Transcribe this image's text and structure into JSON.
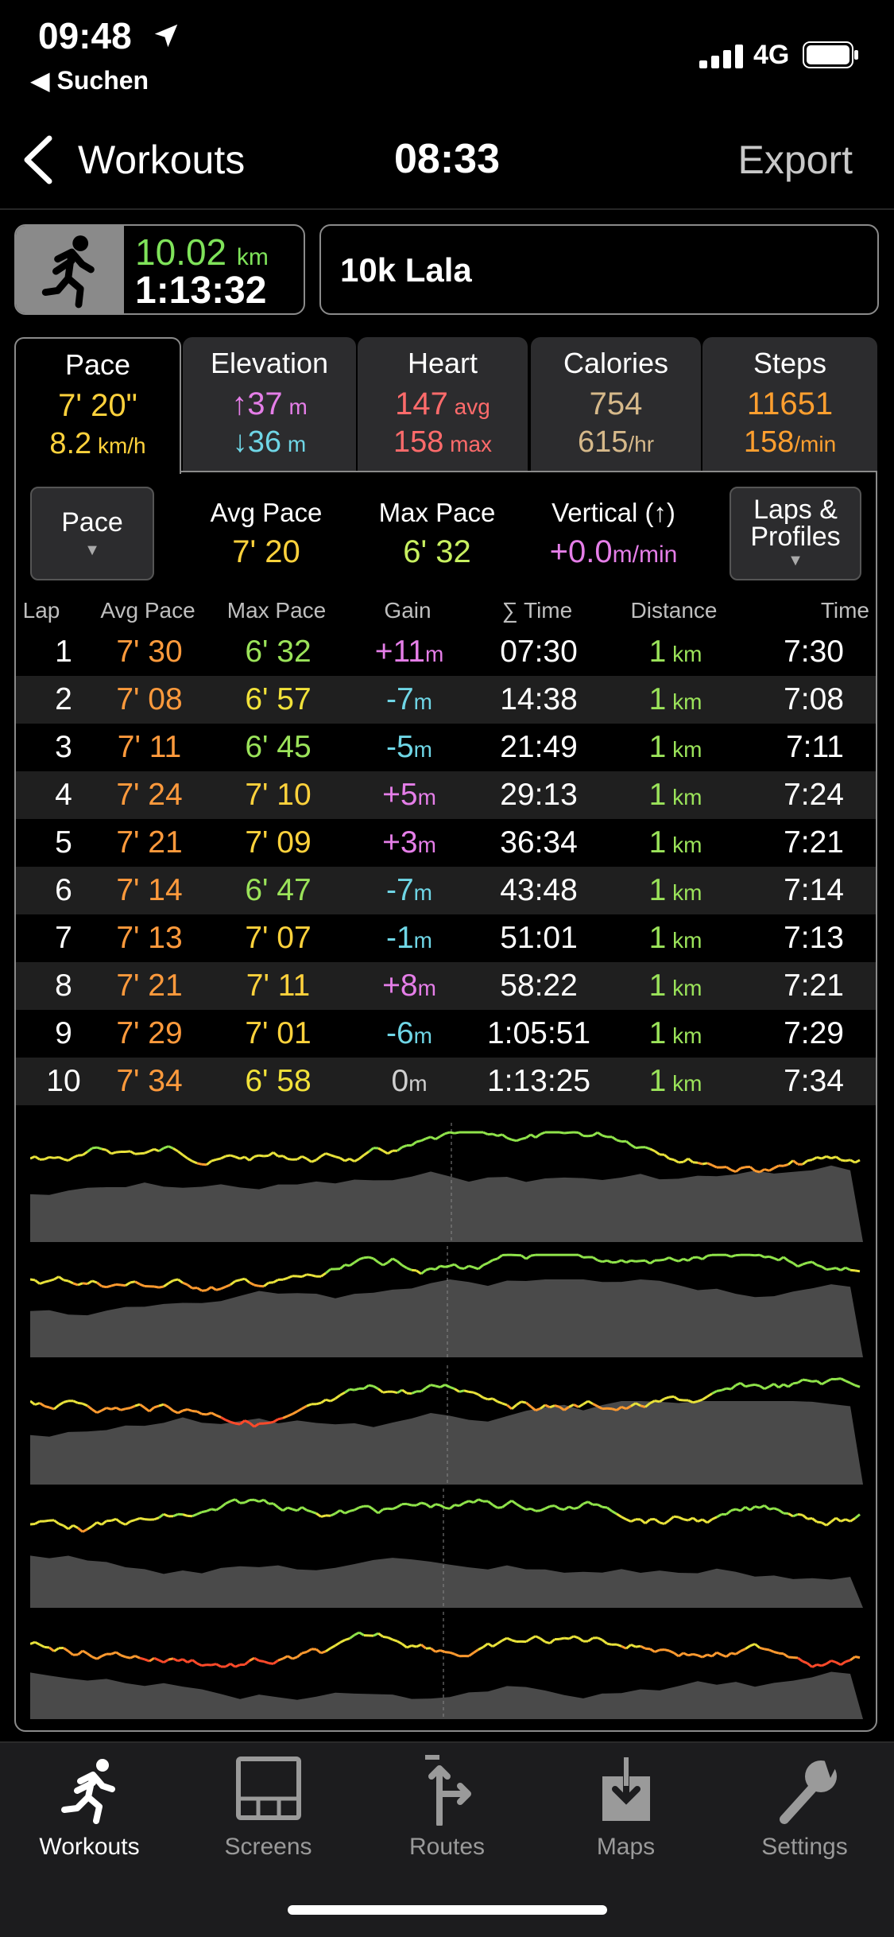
{
  "status_bar": {
    "time": "09:48",
    "back_app": "◀ Suchen",
    "network": "4G"
  },
  "nav": {
    "back_label": "Workouts",
    "title": "08:33",
    "export_label": "Export"
  },
  "summary": {
    "distance": "10.02",
    "distance_unit": "km",
    "duration": "1:13:32",
    "name": "10k Lala"
  },
  "tabs": [
    {
      "title": "Pace",
      "v1": "7' 20\"",
      "v1_unit": "",
      "v2": "8.2",
      "v2_unit": " km/h",
      "color1": "#ffd23c",
      "color2": "#ffd23c"
    },
    {
      "title": "Elevation",
      "v1": "↑37",
      "v1_unit": " m",
      "v2": "↓36",
      "v2_unit": " m",
      "color1": "#e57ee8",
      "color2": "#6fd6e6"
    },
    {
      "title": "Heart",
      "v1": "147",
      "v1_unit": " avg",
      "v2": "158",
      "v2_unit": " max",
      "color1": "#ff6b6b",
      "color2": "#ff6b6b"
    },
    {
      "title": "Calories",
      "v1": "754",
      "v1_unit": "",
      "v2": "615",
      "v2_unit": "/hr",
      "color1": "#d6b98a",
      "color2": "#d6b98a"
    },
    {
      "title": "Steps",
      "v1": "11651",
      "v1_unit": "",
      "v2": "158",
      "v2_unit": "/min",
      "color1": "#ff9f2f",
      "color2": "#ff9f2f"
    }
  ],
  "controls": {
    "pace_button": "Pace",
    "laps_button_line1": "Laps &",
    "laps_button_line2": "Profiles"
  },
  "stats": {
    "avg_pace_label": "Avg Pace",
    "avg_pace": "7' 20",
    "max_pace_label": "Max Pace",
    "max_pace": "6' 32",
    "vertical_label": "Vertical (↑)",
    "vertical": "+0.0",
    "vertical_unit": "m/min"
  },
  "table": {
    "headers": [
      "Lap",
      "Avg Pace",
      "Max Pace",
      "Gain",
      "∑ Time",
      "Distance",
      "Time"
    ],
    "rows": [
      {
        "lap": "1",
        "avg": "7' 30",
        "max": "6' 32",
        "gain": "+11",
        "cum": "07:30",
        "dist": "1",
        "time": "7:30"
      },
      {
        "lap": "2",
        "avg": "7' 08",
        "max": "6' 57",
        "gain": "-7",
        "cum": "14:38",
        "dist": "1",
        "time": "7:08"
      },
      {
        "lap": "3",
        "avg": "7' 11",
        "max": "6' 45",
        "gain": "-5",
        "cum": "21:49",
        "dist": "1",
        "time": "7:11"
      },
      {
        "lap": "4",
        "avg": "7' 24",
        "max": "7' 10",
        "gain": "+5",
        "cum": "29:13",
        "dist": "1",
        "time": "7:24"
      },
      {
        "lap": "5",
        "avg": "7' 21",
        "max": "7' 09",
        "gain": "+3",
        "cum": "36:34",
        "dist": "1",
        "time": "7:21"
      },
      {
        "lap": "6",
        "avg": "7' 14",
        "max": "6' 47",
        "gain": "-7",
        "cum": "43:48",
        "dist": "1",
        "time": "7:14"
      },
      {
        "lap": "7",
        "avg": "7' 13",
        "max": "7' 07",
        "gain": "-1",
        "cum": "51:01",
        "dist": "1",
        "time": "7:13"
      },
      {
        "lap": "8",
        "avg": "7' 21",
        "max": "7' 11",
        "gain": "+8",
        "cum": "58:22",
        "dist": "1",
        "time": "7:21"
      },
      {
        "lap": "9",
        "avg": "7' 29",
        "max": "7' 01",
        "gain": "-6",
        "cum": "1:05:51",
        "dist": "1",
        "time": "7:29"
      },
      {
        "lap": "10",
        "avg": "7' 34",
        "max": "6' 58",
        "gain": "0",
        "cum": "1:13:25",
        "dist": "1",
        "time": "7:34"
      }
    ],
    "gain_unit": "m",
    "dist_unit": "km"
  },
  "colors": {
    "orange": "#ff9a3c",
    "yellow": "#f2e23a",
    "green": "#9be35a",
    "purple": "#e57ee8",
    "cyan": "#6fd6e6",
    "neutral": "#cfcfcf",
    "distance_green": "#9be35a"
  },
  "tabbar": [
    {
      "label": "Workouts",
      "icon": "runner-icon"
    },
    {
      "label": "Screens",
      "icon": "screens-icon"
    },
    {
      "label": "Routes",
      "icon": "routes-icon"
    },
    {
      "label": "Maps",
      "icon": "maps-icon"
    },
    {
      "label": "Settings",
      "icon": "wrench-icon"
    }
  ]
}
